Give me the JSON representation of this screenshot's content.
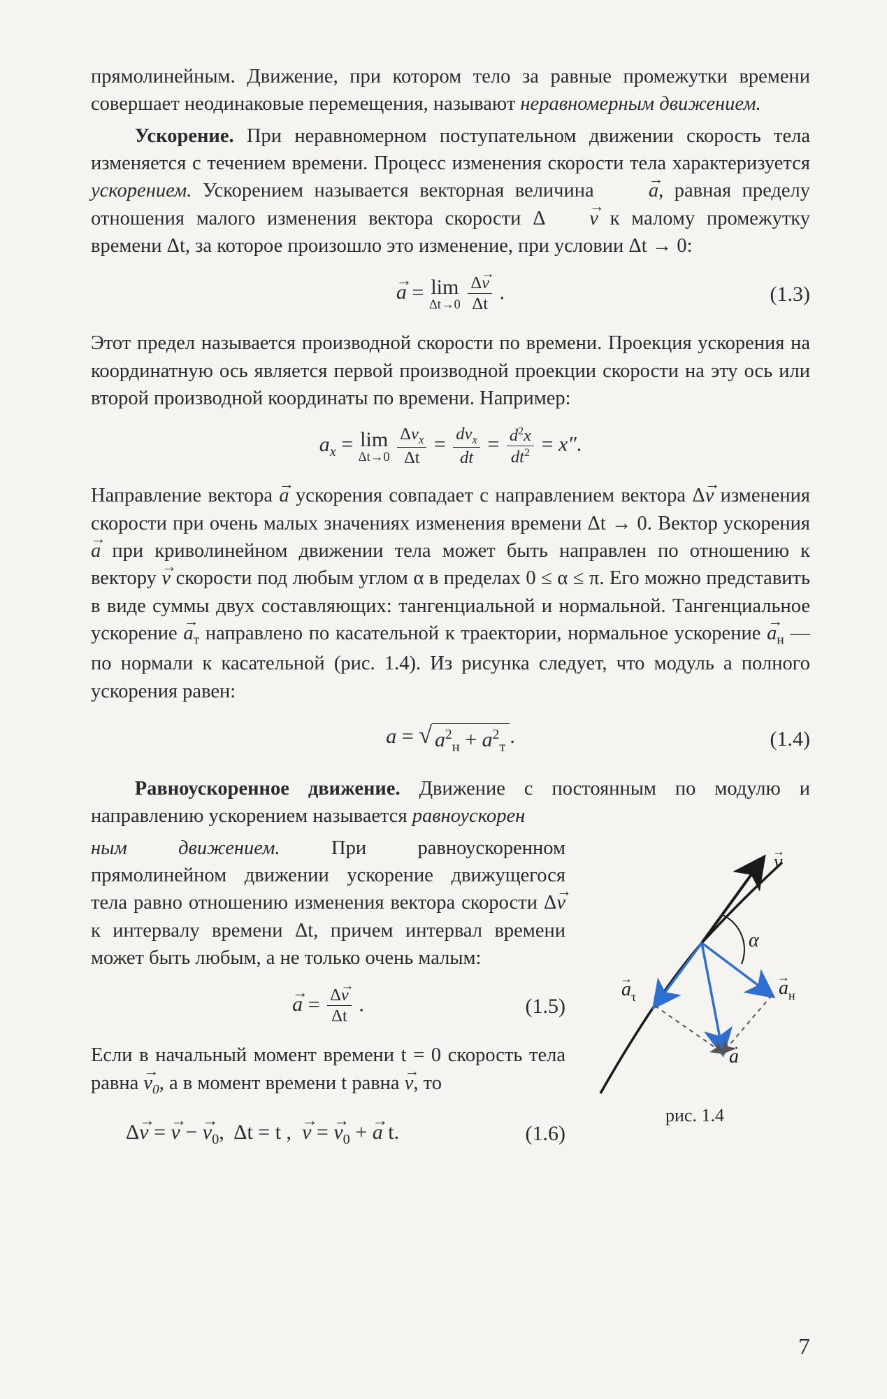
{
  "para1": {
    "a": "прямолинейным. Движение, при котором тело за равные промежутки времени совершает неодинаковые перемещения, называют ",
    "em": "неравномерным движением."
  },
  "para2": {
    "h": "Ускорение.",
    "a": " При неравномерном поступательном движе­нии скорость тела изменяется с течением времени. Процесс изменения скорости тела характеризуется ",
    "em1": "ускорением.",
    "b": " Уско­рением называется векторная величина ",
    "c": ", равная пределу отношения малого изменения вектора скорости Δ",
    "d": " к малому промежутку времени Δt, за которое произошло это измене­ние, при условии Δt → 0:"
  },
  "eq1_3": {
    "num": "(1.3)"
  },
  "para3": "Этот предел называется производной скорости по времени. Проекция ускорения на координатную ось является первой производной проекции скорости на эту ось или второй про­изводной координаты по времени. Например:",
  "para4": {
    "a": "Направление вектора ",
    "b": " ускорения совпадает с направлением вектора Δ",
    "c": " изменения скорости при очень малых значениях изменения времени Δt → 0. Вектор ускорения ",
    "d": " при криволи­нейном движении тела может быть направлен по отношению к вектору ",
    "e": " скорости под любым углом α в пределах 0 ≤ α ≤ π. Его можно представить в виде суммы двух составляющих: тангенциальной и нормальной. Тангенциальное ускорение ",
    "f": " направлено по касательной к траектории, нормальное уско­рение ",
    "g": " — по нормали к касательной (рис. 1.4). Из рисунка следует, что модуль a полного ускорения равен:"
  },
  "eq1_4": {
    "num": "(1.4)"
  },
  "para5": {
    "h": "Равноускоренное движение.",
    "a": " Движение с постоянным по модулю и направлению ускорением называется ",
    "em": "равноускорен­"
  },
  "para6": {
    "em": "ным движением.",
    "a": " При равноускоренном прямолинейном движении ускорение движущегося тела равно отношению из­менения вектора скорости Δ",
    "b": " к интерва­лу времени Δt, причем интервал времени может быть любым, а не только очень малым:"
  },
  "eq1_5": {
    "num": "(1.5)"
  },
  "para7": {
    "a": "Если в начальный момент времени t = 0 скорость тела равна ",
    "b": ", а в момент време­ни t равна ",
    "c": ", то"
  },
  "eq1_6": {
    "num": "(1.6)"
  },
  "fig": {
    "caption": "рис. 1.4",
    "labels": {
      "v": "v",
      "alpha": "α",
      "at": "a",
      "at_sub": "τ",
      "an": "a",
      "an_sub": "н",
      "a": "a"
    },
    "colors": {
      "curve": "#1a1a1a",
      "vec_v": "#1a1a1a",
      "vec_blue": "#2f6fd1",
      "dash": "#555",
      "text": "#1a1a1a"
    }
  },
  "page": "7"
}
